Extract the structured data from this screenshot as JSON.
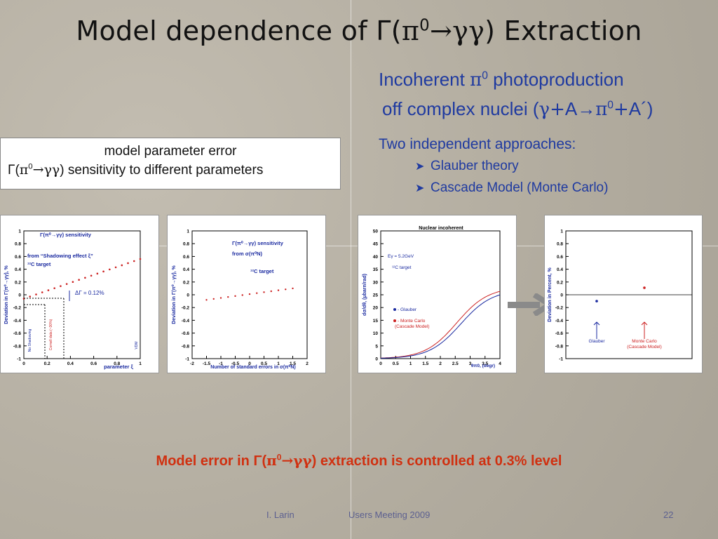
{
  "title": {
    "pre": "Model dependence of Γ(",
    "pi": "π",
    "zero": "0",
    "arrow": "→",
    "gg": "γγ",
    "post": ") Extraction"
  },
  "right_block": {
    "line1_pre": "Incoherent ",
    "line1_pi": "π",
    "line1_sup": "0",
    "line1_post": " photoproduction",
    "line2_pre": "off complex nuclei (",
    "line2_g": "γ",
    "line2_plus": "+",
    "line2_a": "A→",
    "line2_pi": "π",
    "line2_sup": "0",
    "line2_plus2": "+",
    "line2_post": "A´)",
    "approaches": "Two independent approaches:",
    "bullets": [
      "Glauber theory",
      "Cascade Model (Monte Carlo)"
    ]
  },
  "box": {
    "line1": "model parameter error",
    "line2_pre": "Γ(",
    "line2_pi": "π",
    "line2_sup": "0",
    "line2_arrow": "→",
    "line2_gg": "γγ",
    "line2_post": ")  sensitivity to different parameters"
  },
  "chart1": {
    "ylabel": "Deviation in Γ(π⁰→γγ), %",
    "xlabel": "parameter ξ",
    "legend1": "Γ(π⁰→γγ) sensitivity",
    "legend2": "from “Shadowing effect  ξ”",
    "legend3": "¹²C target",
    "delta": "ΔΓ = 0.12%",
    "label_noshadow": "No Shadowing",
    "label_cornell": "Cornell data (~30%)",
    "label_vdm": "VDM",
    "yticks": [
      "1",
      "0.8",
      "0.6",
      "0.4",
      "0.2",
      "0",
      "-0.2",
      "-0.4",
      "-0.6",
      "-0.8",
      "-1"
    ],
    "xticks": [
      "0",
      "0.2",
      "0.4",
      "0.6",
      "0.8",
      "1"
    ]
  },
  "chart2": {
    "ylabel": "Deviation in Γ(π⁰→γγ), %",
    "xlabel": "Number of standard errors in σ(π⁰N)",
    "legend1": "Γ(π⁰→γγ) sensitivity",
    "legend2": "from σ(π⁰N)",
    "legend3": "¹²C target",
    "yticks": [
      "1",
      "0.8",
      "0.6",
      "0.4",
      "0.2",
      "0",
      "-0.2",
      "-0.4",
      "-0.6",
      "-0.8",
      "-1"
    ],
    "xticks": [
      "-2",
      "-1.5",
      "-1",
      "-0.5",
      "0",
      "0.5",
      "1",
      "1.5",
      "2"
    ]
  },
  "chart3": {
    "title": "Nuclear incoherent",
    "ylabel": "dσ/dθ, (μbarn/rad)",
    "xlabel": "θπ0, (degr)",
    "energy": "Eγ = 5.2GeV",
    "target": "¹²C target",
    "legend_glauber": "- Glauber",
    "legend_mc1": "- Monte Carlo",
    "legend_mc2": "(Cascade Model)",
    "yticks": [
      "50",
      "45",
      "40",
      "35",
      "30",
      "25",
      "20",
      "15",
      "10",
      "5",
      "0"
    ],
    "xticks": [
      "0",
      "0.5",
      "1",
      "1.5",
      "2",
      "2.5",
      "3",
      "3.5",
      "4"
    ]
  },
  "chart4": {
    "ylabel": "Deviation in Percent, %",
    "label_glauber": "Glauber",
    "label_mc1": "Monte Carlo",
    "label_mc2": "(Cascade Model)",
    "yticks": [
      "1",
      "0.8",
      "0.6",
      "0.4",
      "0.2",
      "0",
      "-0.2",
      "-0.4",
      "-0.6",
      "-0.8",
      "-1"
    ]
  },
  "conclusion": {
    "pre": "Model error in Γ(",
    "pi": "π",
    "sup": "0",
    "arrow": "→",
    "gg": "γγ",
    "post": ") extraction is controlled at 0.3%  level"
  },
  "footer": {
    "author": "I. Larin",
    "event": "Users Meeting   2009",
    "page": "22"
  },
  "colors": {
    "blue_text": "#1f3aa0",
    "red_text": "#d03010",
    "plot_blue": "#1a2aa0",
    "plot_red": "#cc2020"
  }
}
